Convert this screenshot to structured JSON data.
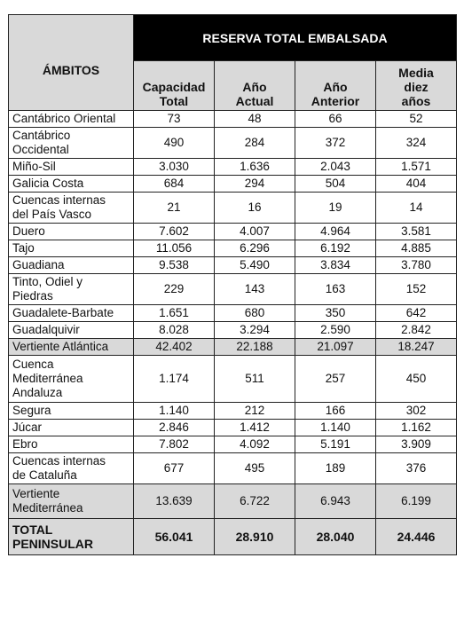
{
  "header": {
    "ambitos": "ÁMBITOS",
    "reserva": "RESERVA TOTAL EMBALSADA",
    "columns": {
      "capacidad_l1": "Capacidad",
      "capacidad_l2": "Total",
      "actual_l1": "Año",
      "actual_l2": "Actual",
      "anterior_l1": "Año",
      "anterior_l2": "Anterior",
      "media_l1": "Media",
      "media_l2": "diez",
      "media_l3": "años"
    }
  },
  "rows": [
    {
      "name_l1": "Cantábrico Oriental",
      "name_l2": "",
      "name_l3": "",
      "capacidad": "73",
      "actual": "48",
      "anterior": "66",
      "media": "52"
    },
    {
      "name_l1": "Cantábrico",
      "name_l2": "Occidental",
      "name_l3": "",
      "capacidad": "490",
      "actual": "284",
      "anterior": "372",
      "media": "324"
    },
    {
      "name_l1": "Miño-Sil",
      "name_l2": "",
      "name_l3": "",
      "capacidad": "3.030",
      "actual": "1.636",
      "anterior": "2.043",
      "media": "1.571"
    },
    {
      "name_l1": "Galicia Costa",
      "name_l2": "",
      "name_l3": "",
      "capacidad": "684",
      "actual": "294",
      "anterior": "504",
      "media": "404"
    },
    {
      "name_l1": "Cuencas internas",
      "name_l2": "del País Vasco",
      "name_l3": "",
      "capacidad": "21",
      "actual": "16",
      "anterior": "19",
      "media": "14"
    },
    {
      "name_l1": "Duero",
      "name_l2": "",
      "name_l3": "",
      "capacidad": "7.602",
      "actual": "4.007",
      "anterior": "4.964",
      "media": "3.581"
    },
    {
      "name_l1": "Tajo",
      "name_l2": "",
      "name_l3": "",
      "capacidad": "11.056",
      "actual": "6.296",
      "anterior": "6.192",
      "media": "4.885"
    },
    {
      "name_l1": "Guadiana",
      "name_l2": "",
      "name_l3": "",
      "capacidad": "9.538",
      "actual": "5.490",
      "anterior": "3.834",
      "media": "3.780"
    },
    {
      "name_l1": "Tinto, Odiel y",
      "name_l2": "Piedras",
      "name_l3": "",
      "capacidad": "229",
      "actual": "143",
      "anterior": "163",
      "media": "152"
    },
    {
      "name_l1": "Guadalete-Barbate",
      "name_l2": "",
      "name_l3": "",
      "capacidad": "1.651",
      "actual": "680",
      "anterior": "350",
      "media": "642"
    },
    {
      "name_l1": "Guadalquivir",
      "name_l2": "",
      "name_l3": "",
      "capacidad": "8.028",
      "actual": "3.294",
      "anterior": "2.590",
      "media": "2.842"
    },
    {
      "name_l1": "Vertiente Atlántica",
      "name_l2": "",
      "name_l3": "",
      "capacidad": "42.402",
      "actual": "22.188",
      "anterior": "21.097",
      "media": "18.247"
    },
    {
      "name_l1": "Cuenca",
      "name_l2": "Mediterránea",
      "name_l3": "Andaluza",
      "capacidad": "1.174",
      "actual": "511",
      "anterior": "257",
      "media": "450"
    },
    {
      "name_l1": "Segura",
      "name_l2": "",
      "name_l3": "",
      "capacidad": "1.140",
      "actual": "212",
      "anterior": "166",
      "media": "302"
    },
    {
      "name_l1": "Júcar",
      "name_l2": "",
      "name_l3": "",
      "capacidad": "2.846",
      "actual": "1.412",
      "anterior": "1.140",
      "media": "1.162"
    },
    {
      "name_l1": "Ebro",
      "name_l2": "",
      "name_l3": "",
      "capacidad": "7.802",
      "actual": "4.092",
      "anterior": "5.191",
      "media": "3.909"
    },
    {
      "name_l1": "Cuencas internas",
      "name_l2": "de Cataluña",
      "name_l3": "",
      "capacidad": "677",
      "actual": "495",
      "anterior": "189",
      "media": "376"
    },
    {
      "name_l1": "Vertiente",
      "name_l2": "Mediterránea",
      "name_l3": "",
      "capacidad": "13.639",
      "actual": "6.722",
      "anterior": "6.943",
      "media": "6.199"
    }
  ],
  "total": {
    "name_l1": "TOTAL",
    "name_l2": "PENINSULAR",
    "capacidad": "56.041",
    "actual": "28.910",
    "anterior": "28.040",
    "media": "24.446"
  }
}
